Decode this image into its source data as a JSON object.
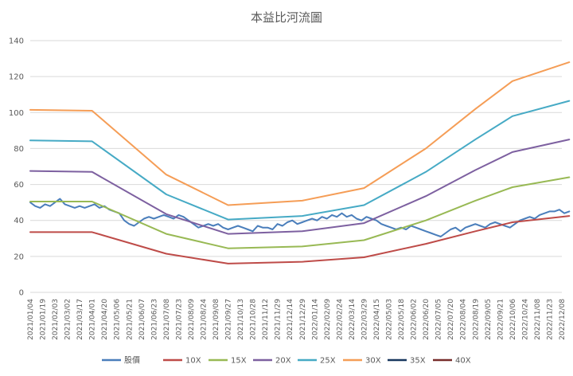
{
  "chart_data": {
    "type": "line",
    "title": "本益比河流圖",
    "ylim": [
      0,
      140
    ],
    "yticks": [
      0,
      20,
      40,
      60,
      80,
      100,
      120,
      140
    ],
    "grid": true,
    "legend_position": "bottom",
    "x_labels": [
      "2021/01/04",
      "2021/01/19",
      "2021/02/03",
      "2021/03/02",
      "2021/03/17",
      "2021/04/01",
      "2021/04/20",
      "2021/05/06",
      "2021/05/21",
      "2021/06/07",
      "2021/06/23",
      "2021/07/08",
      "2021/07/23",
      "2021/08/09",
      "2021/08/24",
      "2021/09/08",
      "2021/09/27",
      "2021/10/13",
      "2021/10/28",
      "2021/11/12",
      "2021/11/29",
      "2021/12/14",
      "2021/12/29",
      "2022/01/14",
      "2022/02/09",
      "2022/02/24",
      "2022/03/14",
      "2022/03/29",
      "2022/04/15",
      "2022/05/03",
      "2022/05/18",
      "2022/06/02",
      "2022/06/20",
      "2022/07/05",
      "2022/07/20",
      "2022/08/04",
      "2022/08/19",
      "2022/09/05",
      "2022/09/21",
      "2022/10/06",
      "2022/10/24",
      "2022/11/08",
      "2022/11/23",
      "2022/12/08"
    ],
    "series": [
      {
        "name": "股價",
        "color": "#4a7ebb",
        "width": 2,
        "x": [
          0,
          0.4,
          0.8,
          1.2,
          1.6,
          2,
          2.4,
          2.8,
          3.2,
          3.6,
          4,
          4.4,
          4.8,
          5.2,
          5.6,
          6,
          6.4,
          6.8,
          7.2,
          7.6,
          8,
          8.4,
          8.8,
          9.2,
          9.6,
          10,
          10.4,
          10.8,
          11.2,
          11.6,
          12,
          12.4,
          12.8,
          13.2,
          13.6,
          14,
          14.4,
          14.8,
          15.2,
          15.6,
          16,
          16.4,
          16.8,
          17.2,
          17.6,
          18,
          18.4,
          18.8,
          19.2,
          19.6,
          20,
          20.4,
          20.8,
          21.2,
          21.6,
          22,
          22.4,
          22.8,
          23.2,
          23.6,
          24,
          24.4,
          24.8,
          25.2,
          25.6,
          26,
          26.4,
          26.8,
          27.2,
          27.6,
          28,
          28.4,
          28.8,
          29.2,
          29.6,
          30,
          30.4,
          30.8,
          31.2,
          31.6,
          32,
          32.4,
          32.8,
          33.2,
          33.6,
          34,
          34.4,
          34.8,
          35.2,
          35.6,
          36,
          36.4,
          36.8,
          37.2,
          37.6,
          38,
          38.4,
          38.8,
          39.2,
          39.6,
          40,
          40.4,
          40.8,
          41.2,
          41.6,
          42,
          42.4,
          42.8,
          43.2,
          43.6
        ],
        "values": [
          50,
          48,
          47,
          49,
          48,
          50,
          52,
          49,
          48,
          47,
          48,
          47,
          48,
          49,
          47,
          48,
          46,
          45,
          44,
          40,
          38,
          37,
          39,
          41,
          42,
          41,
          42,
          43,
          42,
          41,
          43,
          42,
          40,
          38,
          36,
          37,
          38,
          37,
          38,
          36,
          35,
          36,
          37,
          36,
          35,
          34,
          37,
          36,
          36,
          35,
          38,
          37,
          39,
          40,
          38,
          39,
          40,
          41,
          40,
          42,
          41,
          43,
          42,
          44,
          42,
          43,
          41,
          40,
          42,
          41,
          40,
          38,
          37,
          36,
          35,
          36,
          35,
          37,
          36,
          35,
          34,
          33,
          32,
          31,
          33,
          35,
          36,
          34,
          36,
          37,
          38,
          37,
          36,
          38,
          39,
          38,
          37,
          36,
          38,
          40,
          41,
          42,
          41,
          43,
          44,
          45,
          45,
          46,
          44,
          45
        ]
      },
      {
        "name": "10X",
        "color": "#be4b48",
        "width": 2,
        "x": [
          0,
          5,
          11,
          16,
          22,
          27,
          32,
          36,
          39,
          43.6
        ],
        "values": [
          33.5,
          33.5,
          21.5,
          16.0,
          17.0,
          19.5,
          27.0,
          34.0,
          39.0,
          42.5
        ]
      },
      {
        "name": "15X",
        "color": "#98b954",
        "width": 2,
        "x": [
          0,
          5,
          11,
          16,
          22,
          27,
          32,
          36,
          39,
          43.6
        ],
        "values": [
          50.5,
          50.5,
          32.5,
          24.5,
          25.5,
          29.0,
          40.0,
          51.0,
          58.5,
          64.0
        ]
      },
      {
        "name": "20X",
        "color": "#7d60a0",
        "width": 2,
        "x": [
          0,
          5,
          11,
          16,
          22,
          27,
          32,
          36,
          39,
          43.6
        ],
        "values": [
          67.5,
          67.0,
          43.5,
          32.5,
          34.0,
          38.5,
          53.5,
          68.0,
          78.0,
          85.0
        ]
      },
      {
        "name": "25X",
        "color": "#46aac5",
        "width": 2,
        "x": [
          0,
          5,
          11,
          16,
          22,
          27,
          32,
          36,
          39,
          43.6
        ],
        "values": [
          84.5,
          84.0,
          54.5,
          40.5,
          42.5,
          48.5,
          67.0,
          85.0,
          98.0,
          106.5
        ]
      },
      {
        "name": "30X",
        "color": "#f59d56",
        "width": 2,
        "x": [
          0,
          5,
          11,
          16,
          22,
          27,
          32,
          36,
          39,
          43.6
        ],
        "values": [
          101.5,
          101.0,
          65.5,
          48.5,
          51.0,
          58.0,
          80.0,
          102.0,
          117.5,
          128.0
        ]
      },
      {
        "name": "35X",
        "color": "#17375e",
        "width": 2,
        "x": [],
        "values": []
      },
      {
        "name": "40X",
        "color": "#772c2a",
        "width": 2,
        "x": [],
        "values": []
      }
    ]
  }
}
